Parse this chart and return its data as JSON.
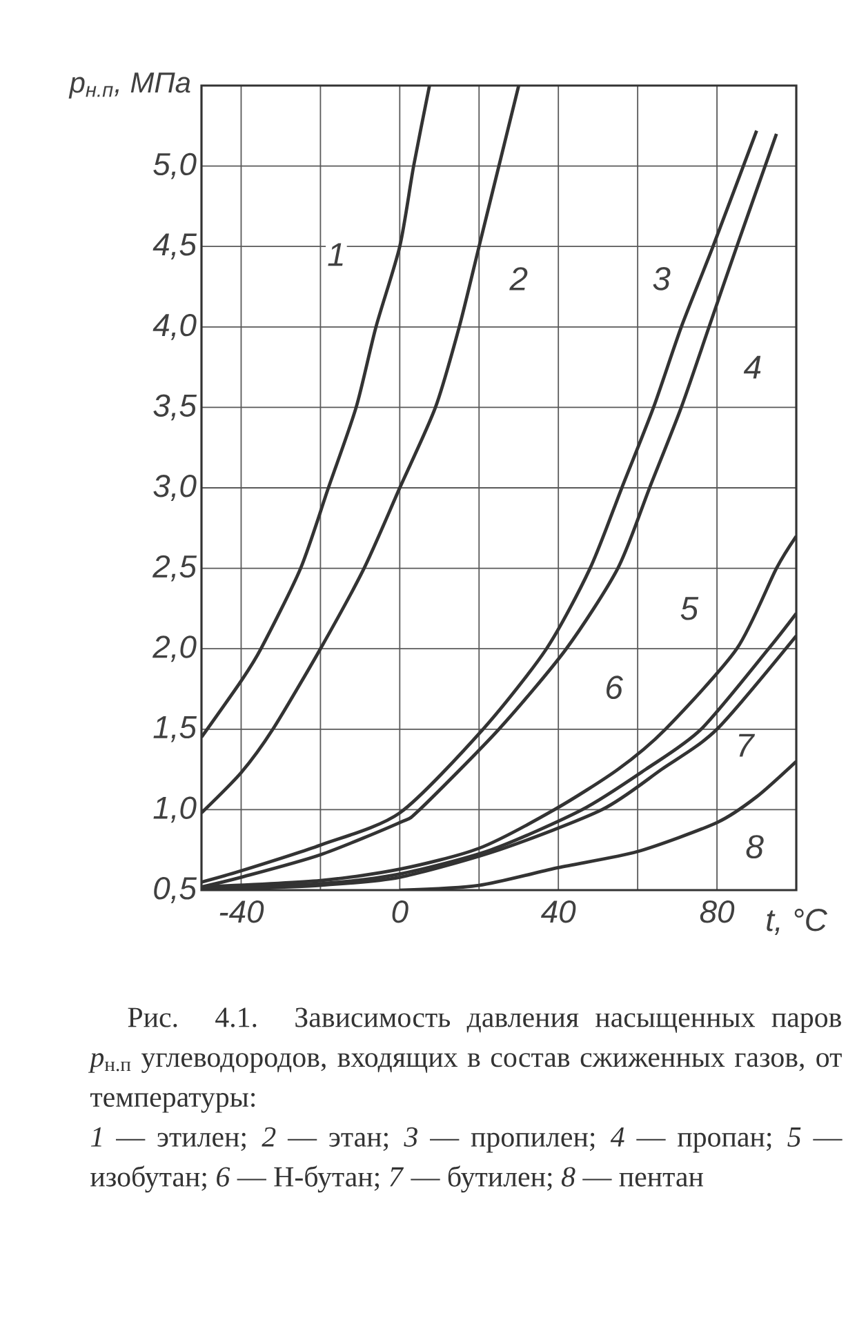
{
  "chart_data": {
    "type": "line",
    "xlabel": "t, °C",
    "ylabel": "p$_{н.п}$, МПа",
    "xlim": [
      -50,
      100
    ],
    "ylim": [
      0.5,
      5.5
    ],
    "xticks": [
      -40,
      {
        "value": -20,
        "label": null
      },
      0,
      {
        "value": 20,
        "label": null
      },
      40,
      {
        "value": 60,
        "label": null
      },
      80
    ],
    "yticks": [
      {
        "value": 0.5,
        "label": "0,5"
      },
      {
        "value": 1.0,
        "label": "1,0"
      },
      {
        "value": 1.5,
        "label": "1,5"
      },
      {
        "value": 2.0,
        "label": "2,0"
      },
      {
        "value": 2.5,
        "label": "2,5"
      },
      {
        "value": 3.0,
        "label": "3,0"
      },
      {
        "value": 3.5,
        "label": "3,5"
      },
      {
        "value": 4.0,
        "label": "4,0"
      },
      {
        "value": 4.5,
        "label": "4,5"
      },
      {
        "value": 5.0,
        "label": "5,0"
      }
    ],
    "grid": true,
    "series": [
      {
        "color": "#333333",
        "x": [
          -50,
          -40,
          -35,
          -25,
          -18,
          -11,
          -6,
          0,
          3.5,
          7.5
        ],
        "values": [
          1.45,
          1.8,
          2.0,
          2.5,
          3.0,
          3.5,
          4.0,
          4.5,
          5.0,
          5.5
        ]
      },
      {
        "color": "#333333",
        "x": [
          -50,
          -40,
          -32,
          -20,
          -9,
          0,
          9,
          15,
          20,
          25,
          30
        ],
        "values": [
          0.98,
          1.23,
          1.5,
          2.0,
          2.5,
          3.0,
          3.5,
          4.0,
          4.5,
          5.0,
          5.5
        ]
      },
      {
        "color": "#333333",
        "x": [
          -50,
          -40,
          -20,
          0,
          21,
          37,
          48,
          56,
          64,
          71,
          79,
          90
        ],
        "values": [
          0.55,
          0.62,
          0.78,
          0.98,
          1.5,
          2.0,
          2.5,
          3.0,
          3.5,
          4.0,
          4.5,
          5.22
        ]
      },
      {
        "color": "#333333",
        "x": [
          -50,
          -40,
          -20,
          0,
          5,
          25,
          42,
          55,
          63,
          71,
          78,
          85,
          95
        ],
        "values": [
          0.52,
          0.58,
          0.72,
          0.92,
          1.0,
          1.5,
          2.0,
          2.5,
          3.0,
          3.5,
          4.0,
          4.5,
          5.2
        ]
      },
      {
        "color": "#333333",
        "x": [
          -50,
          -20,
          0,
          20,
          39,
          55,
          67,
          85,
          95,
          100
        ],
        "values": [
          0.52,
          0.56,
          0.63,
          0.76,
          1.0,
          1.25,
          1.5,
          2.0,
          2.5,
          2.7
        ]
      },
      {
        "color": "#333333",
        "x": [
          -50,
          -20,
          0,
          23,
          46,
          62,
          76,
          93,
          100
        ],
        "values": [
          0.51,
          0.54,
          0.6,
          0.75,
          1.0,
          1.25,
          1.5,
          2.0,
          2.22
        ]
      },
      {
        "color": "#333333",
        "x": [
          -50,
          -20,
          0,
          25,
          51,
          66,
          80,
          100
        ],
        "values": [
          0.5,
          0.53,
          0.58,
          0.75,
          1.0,
          1.25,
          1.5,
          2.08
        ]
      },
      {
        "color": "#333333",
        "x": [
          0,
          20,
          40,
          60,
          80,
          90,
          100
        ],
        "values": [
          0.5,
          0.53,
          0.64,
          0.74,
          0.92,
          1.08,
          1.3
        ]
      }
    ],
    "annotations": [
      {
        "text": "1",
        "x": -16,
        "y": 4.45
      },
      {
        "text": "2",
        "x": 30,
        "y": 4.3
      },
      {
        "text": "3",
        "x": 66,
        "y": 4.3
      },
      {
        "text": "4",
        "x": 89,
        "y": 3.75
      },
      {
        "text": "5",
        "x": 73,
        "y": 2.25
      },
      {
        "text": "6",
        "x": 54,
        "y": 1.76
      },
      {
        "text": "7",
        "x": 87,
        "y": 1.4
      },
      {
        "text": "8",
        "x": 89.5,
        "y": 0.77
      },
      "Рис. 4.1. Зависимость давления насыщенных паров *p*$_{н.п}$ углеводородов, входящих в состав сжиженных газов, от температуры:",
      "*1* — этилен; *2* — этан; *3* — пропилен; *4* — пропан; *5* — изобутан; *6* — Н-бутан; *7* — бутилен; *8* — пентан"
    ]
  }
}
